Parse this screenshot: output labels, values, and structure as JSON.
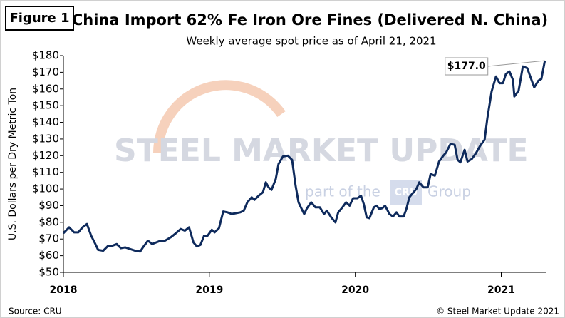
{
  "figure_label": "Figure 1",
  "watermark": {
    "brand": "STEEL MARKET UPDATE",
    "part": "part of the",
    "logo": "CRU",
    "group": "Group"
  },
  "source": "Source: CRU",
  "copyright": "© Steel Market Update 2021",
  "chart_data": {
    "type": "line",
    "title": "China Import 62% Fe Iron Ore Fines (Delivered N. China)",
    "subtitle": "Weekly average spot price as of April 21, 2021",
    "y_label": "U.S. Dollars per Dry Metric Ton",
    "annotation": "$177.0",
    "color": "#0e2a5c",
    "xlim": [
      2018,
      2021.31
    ],
    "xticks": [
      2018,
      2019,
      2020,
      2021
    ],
    "ylim": [
      50,
      180
    ],
    "yticks": [
      {
        "value": 50,
        "label": "$50"
      },
      {
        "value": 60,
        "label": "$60"
      },
      {
        "value": 70,
        "label": "$70"
      },
      {
        "value": 80,
        "label": "$80"
      },
      {
        "value": 90,
        "label": "$90"
      },
      {
        "value": 100,
        "label": "$100"
      },
      {
        "value": 110,
        "label": "$110"
      },
      {
        "value": 120,
        "label": "$120"
      },
      {
        "value": 130,
        "label": "$130"
      },
      {
        "value": 140,
        "label": "$140"
      },
      {
        "value": 150,
        "label": "$150"
      },
      {
        "value": 160,
        "label": "$160"
      },
      {
        "value": 170,
        "label": "$170"
      },
      {
        "value": 180,
        "label": "$180"
      }
    ],
    "x": [
      2018.0,
      2018.039,
      2018.073,
      2018.102,
      2018.131,
      2018.161,
      2018.19,
      2018.219,
      2018.238,
      2018.273,
      2018.307,
      2018.336,
      2018.365,
      2018.394,
      2018.423,
      2018.457,
      2018.491,
      2018.526,
      2018.545,
      2018.579,
      2018.608,
      2018.637,
      2018.667,
      2018.696,
      2018.735,
      2018.764,
      2018.803,
      2018.832,
      2018.861,
      2018.891,
      2018.915,
      2018.939,
      2018.964,
      2018.988,
      2019.017,
      2019.036,
      2019.066,
      2019.095,
      2019.124,
      2019.153,
      2019.182,
      2019.212,
      2019.236,
      2019.26,
      2019.29,
      2019.309,
      2019.338,
      2019.367,
      2019.387,
      2019.406,
      2019.426,
      2019.455,
      2019.474,
      2019.504,
      2019.538,
      2019.567,
      2019.591,
      2019.611,
      2019.63,
      2019.65,
      2019.669,
      2019.698,
      2019.727,
      2019.757,
      2019.786,
      2019.805,
      2019.835,
      2019.864,
      2019.883,
      2019.912,
      2019.937,
      2019.961,
      2019.985,
      2020.015,
      2020.039,
      2020.058,
      2020.078,
      2020.097,
      2020.127,
      2020.146,
      2020.165,
      2020.185,
      2020.204,
      2020.234,
      2020.258,
      2020.282,
      2020.302,
      2020.331,
      2020.35,
      2020.37,
      2020.389,
      2020.418,
      2020.438,
      2020.467,
      2020.496,
      2020.516,
      2020.545,
      2020.574,
      2020.603,
      2020.623,
      2020.652,
      2020.681,
      2020.701,
      2020.72,
      2020.749,
      2020.769,
      2020.798,
      2020.827,
      2020.856,
      2020.886,
      2020.905,
      2020.934,
      2020.964,
      2020.988,
      2021.012,
      2021.032,
      2021.056,
      2021.08,
      2021.09,
      2021.119,
      2021.148,
      2021.178,
      2021.207,
      2021.226,
      2021.255,
      2021.275,
      2021.299
    ],
    "values": [
      73.5,
      77,
      74,
      74,
      77,
      79,
      72,
      67,
      63.5,
      63,
      66,
      66,
      67,
      64.5,
      65,
      64,
      63,
      62.5,
      65,
      69,
      67,
      68,
      69,
      69,
      71,
      73,
      76,
      75,
      77,
      68,
      65.5,
      66.5,
      72,
      72,
      75.5,
      74,
      76.5,
      86.5,
      86,
      85,
      85.5,
      86,
      87,
      92,
      95,
      93.5,
      96,
      98,
      104,
      101,
      99.5,
      106,
      115,
      119.5,
      120,
      117.5,
      102,
      92,
      88.5,
      85,
      88.5,
      92,
      89,
      89,
      85,
      87,
      83,
      80,
      86,
      89,
      92,
      90,
      94.5,
      94.5,
      96,
      91,
      83,
      82.5,
      89,
      90,
      88,
      88.5,
      90,
      85,
      83.5,
      86,
      83.5,
      83.5,
      88,
      95,
      97,
      100,
      104,
      101,
      101,
      109,
      108,
      116.5,
      120,
      122,
      127,
      126.5,
      117.5,
      116,
      123.5,
      116.5,
      118,
      121.5,
      126,
      129.5,
      142.5,
      158.5,
      167.5,
      163.5,
      163.5,
      169,
      170.5,
      165.5,
      155.5,
      159,
      173.5,
      172.5,
      165.5,
      161,
      165,
      166,
      177
    ]
  }
}
